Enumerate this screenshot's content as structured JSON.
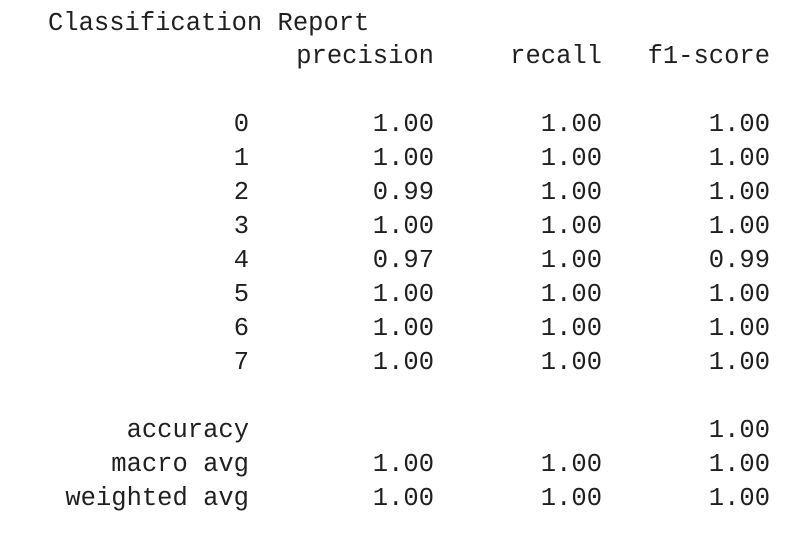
{
  "report": {
    "title": "Classification Report",
    "headers": [
      "precision",
      "recall",
      "f1-score"
    ],
    "rows": [
      {
        "label": "0",
        "precision": "1.00",
        "recall": "1.00",
        "f1": "1.00"
      },
      {
        "label": "1",
        "precision": "1.00",
        "recall": "1.00",
        "f1": "1.00"
      },
      {
        "label": "2",
        "precision": "0.99",
        "recall": "1.00",
        "f1": "1.00"
      },
      {
        "label": "3",
        "precision": "1.00",
        "recall": "1.00",
        "f1": "1.00"
      },
      {
        "label": "4",
        "precision": "0.97",
        "recall": "1.00",
        "f1": "0.99"
      },
      {
        "label": "5",
        "precision": "1.00",
        "recall": "1.00",
        "f1": "1.00"
      },
      {
        "label": "6",
        "precision": "1.00",
        "recall": "1.00",
        "f1": "1.00"
      },
      {
        "label": "7",
        "precision": "1.00",
        "recall": "1.00",
        "f1": "1.00"
      }
    ],
    "summary": [
      {
        "label": "accuracy",
        "precision": "",
        "recall": "",
        "f1": "1.00"
      },
      {
        "label": "macro avg",
        "precision": "1.00",
        "recall": "1.00",
        "f1": "1.00"
      },
      {
        "label": "weighted avg",
        "precision": "1.00",
        "recall": "1.00",
        "f1": "1.00"
      }
    ]
  },
  "colors": {
    "text": "#1f1f1f",
    "background": "#ffffff"
  }
}
